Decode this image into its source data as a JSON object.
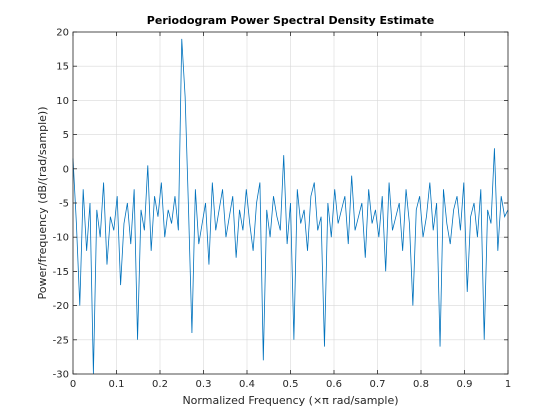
{
  "chart_data": {
    "type": "line",
    "title": "Periodogram Power Spectral Density Estimate",
    "xlabel": "Normalized Frequency  (×π rad/sample)",
    "ylabel": "Power/frequency (dB/(rad/sample))",
    "xlim": [
      0,
      1
    ],
    "ylim": [
      -30,
      20
    ],
    "grid": true,
    "x_ticks": [
      "0",
      "0.1",
      "0.2",
      "0.3",
      "0.4",
      "0.5",
      "0.6",
      "0.7",
      "0.8",
      "0.9",
      "1"
    ],
    "y_ticks": [
      "20",
      "15",
      "10",
      "5",
      "0",
      "-5",
      "-10",
      "-15",
      "-20",
      "-25",
      "-30"
    ],
    "color": "#0072BD",
    "series": [
      {
        "x": [
          0,
          0.0078,
          0.0156,
          0.0234,
          0.0313,
          0.0391,
          0.0469,
          0.0547,
          0.0625,
          0.0703,
          0.0781,
          0.0859,
          0.0938,
          0.1016,
          0.1094,
          0.1172,
          0.125,
          0.1328,
          0.1406,
          0.1484,
          0.1563,
          0.1641,
          0.1719,
          0.1797,
          0.1875,
          0.1953,
          0.2031,
          0.2109,
          0.2188,
          0.2266,
          0.2344,
          0.2422,
          0.25,
          0.2578,
          0.2656,
          0.2734,
          0.2813,
          0.2891,
          0.2969,
          0.3047,
          0.3125,
          0.3203,
          0.3281,
          0.3359,
          0.3438,
          0.3516,
          0.3594,
          0.3672,
          0.375,
          0.3828,
          0.3906,
          0.3984,
          0.4063,
          0.4141,
          0.4219,
          0.4297,
          0.4375,
          0.4453,
          0.4531,
          0.4609,
          0.4688,
          0.4766,
          0.4844,
          0.4922,
          0.5,
          0.5078,
          0.5156,
          0.5234,
          0.5313,
          0.5391,
          0.5469,
          0.5547,
          0.5625,
          0.5703,
          0.5781,
          0.5859,
          0.5938,
          0.6016,
          0.6094,
          0.6172,
          0.625,
          0.6328,
          0.6406,
          0.6484,
          0.6563,
          0.6641,
          0.6719,
          0.6797,
          0.6875,
          0.6953,
          0.7031,
          0.7109,
          0.7188,
          0.7266,
          0.7344,
          0.7422,
          0.75,
          0.7578,
          0.7656,
          0.7734,
          0.7813,
          0.7891,
          0.7969,
          0.8047,
          0.8125,
          0.8203,
          0.8281,
          0.8359,
          0.8438,
          0.8516,
          0.8594,
          0.8672,
          0.875,
          0.8828,
          0.8906,
          0.8984,
          0.9063,
          0.9141,
          0.9219,
          0.9297,
          0.9375,
          0.9453,
          0.9531,
          0.9609,
          0.9688,
          0.9766,
          0.9844,
          0.9922,
          1
        ],
        "y": [
          1.5,
          -8,
          -20,
          -3,
          -12,
          -5,
          -30,
          -6,
          -10,
          -2,
          -14,
          -7,
          -9,
          -4,
          -17,
          -8,
          -5,
          -11,
          -3,
          -25,
          -6,
          -9,
          0.5,
          -12,
          -4,
          -7,
          -2,
          -10,
          -6,
          -8,
          -4,
          -9,
          19,
          10.5,
          -6,
          -24,
          -3,
          -11,
          -8,
          -5,
          -14,
          -2,
          -9,
          -6,
          -3,
          -10,
          -7,
          -4,
          -13,
          -6,
          -9,
          -3,
          -8,
          -12,
          -5,
          -2,
          -28,
          -6,
          -10,
          -4,
          -7,
          -9,
          2,
          -11,
          -5,
          -25,
          -3,
          -8,
          -6,
          -12,
          -4,
          -2,
          -9,
          -7,
          -26,
          -5,
          -10,
          -3,
          -8,
          -6,
          -4,
          -11,
          -1,
          -9,
          -7,
          -5,
          -13,
          -3,
          -8,
          -6,
          -10,
          -4,
          -15,
          -2,
          -9,
          -7,
          -5,
          -12,
          -3,
          -8,
          -20,
          -6,
          -4,
          -10,
          -7,
          -2,
          -9,
          -5,
          -26,
          -3,
          -8,
          -11,
          -6,
          -4,
          -9,
          -2,
          -18,
          -7,
          -5,
          -10,
          -3,
          -25,
          -6,
          -8,
          3,
          -12,
          -4,
          -7,
          -6
        ]
      }
    ]
  }
}
